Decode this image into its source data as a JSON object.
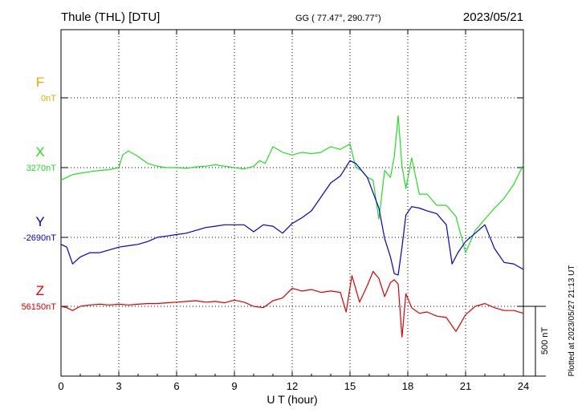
{
  "header": {
    "station": "Thule (THL)  [DTU]",
    "coords": "GG ( 77.47°, 290.77°)",
    "date": "2023/05/21"
  },
  "footer": {
    "plotted": "Plotted at 2023/05/27 21:13 UT"
  },
  "chart_data": {
    "type": "line",
    "xlabel": "U T (hour)",
    "xlim": [
      0,
      24
    ],
    "xticks": [
      0,
      3,
      6,
      9,
      12,
      15,
      18,
      21,
      24
    ],
    "scale_bar": {
      "label": "500 nT",
      "value_nT": 500
    },
    "grid": true,
    "series": [
      {
        "name": "F",
        "baseline_label": "0nT",
        "color": "#f0a800",
        "baseline_nT": 0,
        "x": [],
        "values": []
      },
      {
        "name": "X",
        "baseline_label": "3270nT",
        "color": "#22e022",
        "baseline_nT": 3270,
        "x": [
          0,
          0.3,
          0.6,
          1,
          1.5,
          2,
          2.5,
          3,
          3.2,
          3.5,
          4,
          4.5,
          5,
          5.5,
          6,
          6.5,
          7,
          7.5,
          8,
          8.5,
          9,
          9.5,
          10,
          10.3,
          10.6,
          11,
          11.5,
          12,
          12.5,
          13,
          13.5,
          14,
          14.5,
          15,
          15.3,
          15.6,
          15.9,
          16.2,
          16.5,
          16.8,
          17.1,
          17.3,
          17.5,
          17.7,
          17.9,
          18.2,
          18.6,
          19,
          19.5,
          20,
          20.5,
          21,
          21.5,
          22,
          22.5,
          23,
          23.5,
          24
        ],
        "values": [
          3180,
          3200,
          3220,
          3230,
          3240,
          3250,
          3255,
          3270,
          3360,
          3390,
          3350,
          3300,
          3280,
          3270,
          3270,
          3265,
          3275,
          3280,
          3290,
          3280,
          3270,
          3260,
          3280,
          3320,
          3300,
          3420,
          3380,
          3360,
          3380,
          3370,
          3380,
          3420,
          3400,
          3440,
          3270,
          3250,
          3200,
          3180,
          2900,
          3250,
          3200,
          3350,
          3640,
          3280,
          3120,
          3340,
          3080,
          3080,
          3000,
          3000,
          2920,
          2660,
          2820,
          2900,
          2980,
          3050,
          3150,
          3290
        ]
      },
      {
        "name": "Y",
        "baseline_label": "-2690nT",
        "color": "#0000cc",
        "baseline_nT": -2690,
        "x": [
          0,
          0.3,
          0.6,
          1,
          1.5,
          2,
          2.5,
          3,
          3.5,
          4,
          4.5,
          5,
          5.5,
          6,
          6.5,
          7,
          7.5,
          8,
          8.5,
          9,
          9.5,
          10,
          10.5,
          11,
          11.5,
          12,
          12.5,
          13,
          13.5,
          14,
          14.5,
          15,
          15.3,
          15.6,
          15.9,
          16.2,
          16.5,
          16.8,
          17.1,
          17.3,
          17.5,
          17.7,
          17.9,
          18.2,
          18.6,
          19,
          19.5,
          20,
          20.3,
          20.6,
          21,
          21.5,
          22,
          22.5,
          23,
          23.5,
          24
        ],
        "values": [
          -2740,
          -2760,
          -2880,
          -2830,
          -2800,
          -2800,
          -2780,
          -2760,
          -2750,
          -2740,
          -2720,
          -2690,
          -2680,
          -2670,
          -2660,
          -2640,
          -2620,
          -2610,
          -2600,
          -2600,
          -2600,
          -2650,
          -2600,
          -2610,
          -2660,
          -2590,
          -2550,
          -2500,
          -2400,
          -2300,
          -2250,
          -2140,
          -2160,
          -2210,
          -2260,
          -2370,
          -2480,
          -2700,
          -2830,
          -2950,
          -2960,
          -2760,
          -2530,
          -2470,
          -2480,
          -2500,
          -2520,
          -2600,
          -2880,
          -2800,
          -2720,
          -2660,
          -2600,
          -2770,
          -2870,
          -2880,
          -2920
        ]
      },
      {
        "name": "Z",
        "baseline_label": "56150nT",
        "color": "#dd0000",
        "baseline_nT": 56150,
        "x": [
          0,
          0.3,
          0.6,
          1,
          1.5,
          2,
          2.5,
          3,
          3.5,
          4,
          4.5,
          5,
          5.5,
          6,
          6.5,
          7,
          7.5,
          8,
          8.5,
          9,
          9.5,
          10,
          10.5,
          11,
          11.5,
          12,
          12.5,
          13,
          13.5,
          14,
          14.5,
          14.8,
          15.1,
          15.5,
          15.9,
          16.2,
          16.5,
          16.8,
          17.1,
          17.3,
          17.5,
          17.7,
          17.9,
          18.2,
          18.6,
          19,
          19.5,
          20,
          20.5,
          21,
          21.5,
          22,
          22.5,
          23,
          23.5,
          24
        ],
        "values": [
          56150,
          56140,
          56120,
          56150,
          56160,
          56165,
          56160,
          56165,
          56160,
          56165,
          56170,
          56170,
          56175,
          56180,
          56185,
          56190,
          56180,
          56185,
          56175,
          56195,
          56180,
          56150,
          56140,
          56190,
          56210,
          56280,
          56260,
          56270,
          56250,
          56260,
          56250,
          56110,
          56370,
          56180,
          56300,
          56400,
          56350,
          56220,
          56320,
          56340,
          56310,
          55930,
          56240,
          56140,
          56100,
          56110,
          56080,
          56070,
          55970,
          56090,
          56150,
          56170,
          56140,
          56120,
          56120,
          56100
        ]
      }
    ]
  }
}
